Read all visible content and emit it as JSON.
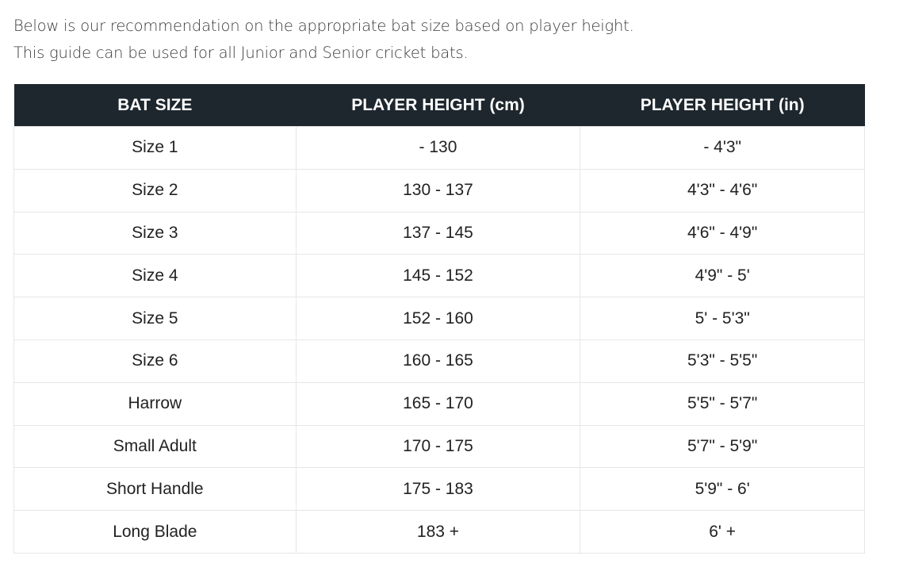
{
  "intro": {
    "line1": "Below is our recommendation on the appropriate bat size based on player height.",
    "line2": "This guide can be used for all Junior and Senior cricket bats."
  },
  "table": {
    "headers": [
      "BAT SIZE",
      "PLAYER HEIGHT (cm)",
      "PLAYER HEIGHT (in)"
    ],
    "rows": [
      [
        "Size 1",
        "- 130",
        "- 4'3\""
      ],
      [
        "Size 2",
        "130 - 137",
        "4'3\" - 4'6\""
      ],
      [
        "Size 3",
        "137 - 145",
        "4'6\" - 4'9\""
      ],
      [
        "Size 4",
        "145 - 152",
        "4'9\" - 5'"
      ],
      [
        "Size 5",
        "152 - 160",
        "5' - 5'3\""
      ],
      [
        "Size 6",
        "160 - 165",
        "5'3\" - 5'5\""
      ],
      [
        "Harrow",
        "165 - 170",
        "5'5\" - 5'7\""
      ],
      [
        "Small Adult",
        "170 - 175",
        "5'7\" - 5'9\""
      ],
      [
        "Short Handle",
        "175 - 183",
        "5'9\" - 6'"
      ],
      [
        "Long Blade",
        "183 +",
        "6' +"
      ]
    ]
  },
  "colors": {
    "header_bg": "#1e272e",
    "header_text": "#ffffff",
    "border": "#e6e6e6"
  }
}
